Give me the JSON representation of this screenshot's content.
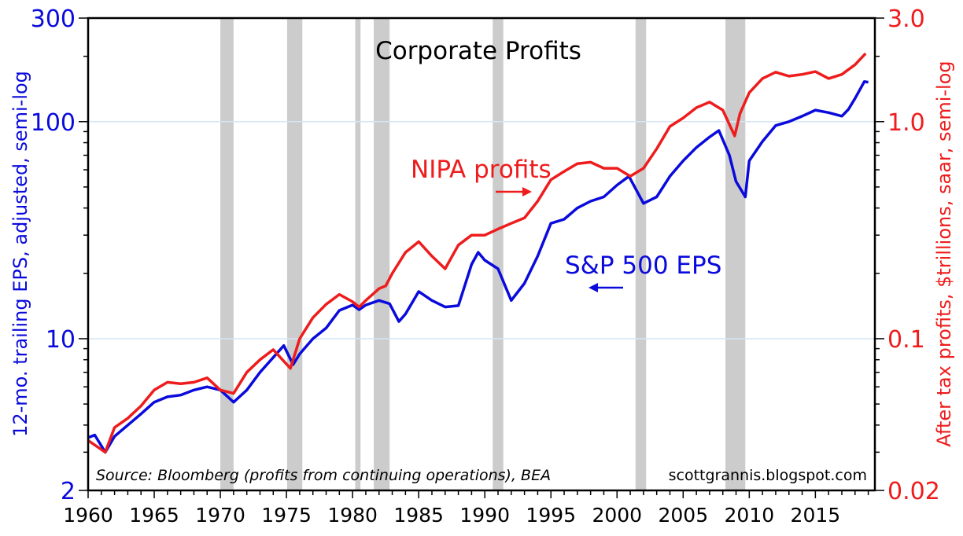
{
  "chart_data": {
    "type": "line",
    "title": "Corporate Profits",
    "ylabel_left": "12-mo. trailing EPS, adjusted, semi-log",
    "ylabel_right": "After tax profits, $trillions, saar, semi-log",
    "source": "Source: Bloomberg (profits from continuing operations), BEA",
    "credit": "scottgrannis.blogspot.com",
    "x_range": [
      1960,
      2019.5
    ],
    "x_ticks": [
      "1960",
      "1965",
      "1970",
      "1975",
      "1980",
      "1985",
      "1990",
      "1995",
      "2000",
      "2005",
      "2010",
      "2015"
    ],
    "y_left": {
      "scale": "log",
      "range": [
        2,
        300
      ],
      "ticks": [
        "2",
        "10",
        "100",
        "300"
      ],
      "tick_values": [
        2,
        10,
        100,
        300
      ]
    },
    "y_right": {
      "scale": "log",
      "range": [
        0.02,
        3.0
      ],
      "ticks": [
        "0.02",
        "0.1",
        "1.0",
        "3.0"
      ],
      "tick_values": [
        0.02,
        0.1,
        1.0,
        3.0
      ]
    },
    "grid": "horizontal at 10 and 100",
    "colors": {
      "eps": "#0a0adc",
      "nipa": "#ee1c1c",
      "recession": "#cccccc",
      "grid": "#d6e6f2",
      "left_axis": "#0a0adc",
      "right_axis": "#ee1c1c"
    },
    "recessions": [
      [
        1970.0,
        1971.0
      ],
      [
        1975.05,
        1976.2
      ],
      [
        1980.2,
        1980.6
      ],
      [
        1981.6,
        1982.8
      ],
      [
        1990.6,
        1991.4
      ],
      [
        2001.4,
        2002.2
      ],
      [
        2008.2,
        2009.7
      ]
    ],
    "annotations": [
      {
        "text": "NIPA profits",
        "arrow": "right",
        "series": "nipa"
      },
      {
        "text": "S&P 500 EPS",
        "arrow": "left",
        "series": "eps"
      }
    ],
    "series": [
      {
        "name": "S&P 500 EPS",
        "axis": "left",
        "color": "#0a0adc",
        "x": [
          1960,
          1960.5,
          1961.3,
          1962,
          1963,
          1964,
          1965,
          1966,
          1967,
          1968,
          1969,
          1970,
          1971,
          1972,
          1973,
          1974,
          1974.8,
          1975.5,
          1976,
          1977,
          1978,
          1979,
          1980,
          1980.5,
          1981,
          1982,
          1982.8,
          1983.5,
          1984,
          1985,
          1986,
          1987,
          1988,
          1989,
          1989.5,
          1990,
          1991,
          1992,
          1993,
          1994,
          1995,
          1996,
          1997,
          1998,
          1999,
          2000,
          2000.9,
          2002,
          2003,
          2004,
          2005,
          2006,
          2007,
          2007.7,
          2008.5,
          2009,
          2009.7,
          2010,
          2011,
          2012,
          2013,
          2014,
          2015,
          2016,
          2017,
          2017.5,
          2018,
          2018.7,
          2019
        ],
        "values": [
          3.5,
          3.6,
          3.0,
          3.55,
          4.0,
          4.5,
          5.1,
          5.4,
          5.5,
          5.8,
          6.0,
          5.8,
          5.1,
          5.8,
          7.0,
          8.2,
          9.3,
          7.6,
          8.5,
          10,
          11.2,
          13.5,
          14.3,
          13.6,
          14.3,
          15,
          14.5,
          12,
          13,
          16.5,
          15,
          14,
          14.2,
          22,
          25,
          23,
          21,
          15,
          18,
          24,
          34,
          35.5,
          40,
          43,
          45,
          51,
          56,
          42,
          45,
          56,
          66,
          76,
          85,
          91,
          70,
          53,
          45,
          66,
          81,
          96,
          100,
          106,
          113,
          110,
          106,
          114,
          128,
          153,
          152
        ]
      },
      {
        "name": "NIPA profits",
        "axis": "right",
        "color": "#ee1c1c",
        "x": [
          1960,
          1961.3,
          1962,
          1963,
          1964,
          1965,
          1966,
          1967,
          1968,
          1969,
          1970,
          1971,
          1972,
          1973,
          1974,
          1975.3,
          1976,
          1977,
          1978,
          1979,
          1980,
          1980.5,
          1981,
          1982,
          1982.5,
          1983,
          1984,
          1985,
          1986,
          1987,
          1988,
          1989,
          1990,
          1991,
          1992,
          1993,
          1994,
          1995,
          1996,
          1997,
          1998,
          1999,
          2000,
          2001,
          2002,
          2003,
          2004,
          2005,
          2006,
          2007,
          2008,
          2008.9,
          2009.3,
          2010,
          2011,
          2012,
          2013,
          2014,
          2015,
          2016,
          2017,
          2018,
          2018.8
        ],
        "values": [
          0.034,
          0.03,
          0.039,
          0.043,
          0.049,
          0.058,
          0.063,
          0.062,
          0.063,
          0.066,
          0.058,
          0.056,
          0.07,
          0.08,
          0.089,
          0.073,
          0.1,
          0.125,
          0.144,
          0.16,
          0.148,
          0.14,
          0.15,
          0.17,
          0.175,
          0.2,
          0.25,
          0.28,
          0.24,
          0.21,
          0.27,
          0.3,
          0.3,
          0.32,
          0.34,
          0.36,
          0.43,
          0.54,
          0.59,
          0.64,
          0.65,
          0.61,
          0.61,
          0.56,
          0.61,
          0.75,
          0.95,
          1.04,
          1.16,
          1.23,
          1.13,
          0.86,
          1.09,
          1.36,
          1.58,
          1.69,
          1.62,
          1.65,
          1.7,
          1.58,
          1.65,
          1.83,
          2.06
        ]
      }
    ]
  }
}
